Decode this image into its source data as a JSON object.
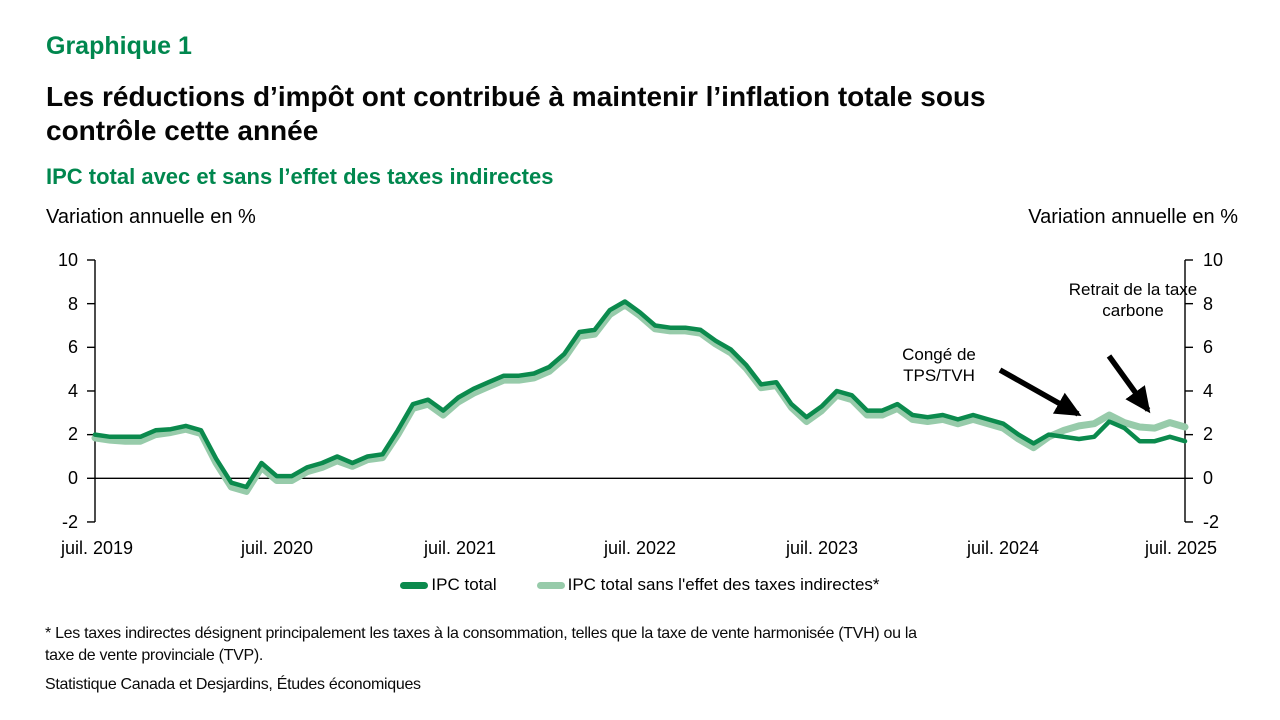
{
  "header": {
    "kicker": "Graphique 1",
    "title_line1": "Les réductions d’impôt ont contribué à maintenir l’inflation totale sous",
    "title_line2": "contrôle cette année",
    "subtitle": "IPC total avec et sans l’effet des taxes indirectes",
    "axis_label_left": "Variation annuelle en %",
    "axis_label_right": "Variation annuelle en %"
  },
  "colors": {
    "brand_green": "#00874e",
    "dark_line": "#0b8a4d",
    "light_line": "#97cbaa",
    "zero_line": "#000000"
  },
  "chart_data": {
    "type": "line",
    "frequency": "monthly",
    "x_start": "juil. 2019",
    "x_end": "juil. 2025",
    "ylim": [
      -2,
      10
    ],
    "grid": "off",
    "legend_position": "bottom",
    "y_ticks": [
      10,
      8,
      6,
      4,
      2,
      0,
      -2
    ],
    "x_tick_labels": [
      "juil. 2019",
      "juil. 2020",
      "juil. 2021",
      "juil. 2022",
      "juil. 2023",
      "juil. 2024",
      "juil. 2025"
    ],
    "series": [
      {
        "name": "IPC total",
        "color": "#0b8a4d",
        "values": [
          2.0,
          1.9,
          1.9,
          1.9,
          2.2,
          2.25,
          2.4,
          2.2,
          0.9,
          -0.2,
          -0.4,
          0.7,
          0.1,
          0.1,
          0.5,
          0.7,
          1.0,
          0.7,
          1.0,
          1.1,
          2.2,
          3.4,
          3.6,
          3.1,
          3.7,
          4.1,
          4.4,
          4.7,
          4.7,
          4.8,
          5.1,
          5.7,
          6.7,
          6.8,
          7.7,
          8.1,
          7.6,
          7.0,
          6.9,
          6.9,
          6.8,
          6.3,
          5.9,
          5.2,
          4.3,
          4.4,
          3.4,
          2.8,
          3.3,
          4.0,
          3.8,
          3.1,
          3.1,
          3.4,
          2.9,
          2.8,
          2.9,
          2.7,
          2.9,
          2.7,
          2.5,
          2.0,
          1.6,
          2.0,
          1.9,
          1.8,
          1.9,
          2.6,
          2.3,
          1.7,
          1.7,
          1.9,
          1.7
        ]
      },
      {
        "name": "IPC total sans l'effet des taxes indirectes*",
        "color": "#97cbaa",
        "values": [
          1.85,
          1.75,
          1.7,
          1.7,
          2.0,
          2.1,
          2.25,
          2.05,
          0.7,
          -0.4,
          -0.6,
          0.5,
          -0.1,
          -0.1,
          0.3,
          0.5,
          0.8,
          0.55,
          0.85,
          0.95,
          2.0,
          3.2,
          3.4,
          2.9,
          3.5,
          3.9,
          4.2,
          4.5,
          4.5,
          4.6,
          4.9,
          5.5,
          6.5,
          6.6,
          7.5,
          7.95,
          7.45,
          6.85,
          6.75,
          6.75,
          6.65,
          6.15,
          5.75,
          5.05,
          4.15,
          4.25,
          3.25,
          2.6,
          3.1,
          3.8,
          3.6,
          2.9,
          2.9,
          3.2,
          2.7,
          2.6,
          2.7,
          2.5,
          2.7,
          2.5,
          2.3,
          1.8,
          1.4,
          1.9,
          2.2,
          2.4,
          2.5,
          2.9,
          2.55,
          2.35,
          2.3,
          2.55,
          2.35
        ]
      }
    ],
    "annotations": [
      {
        "text": "Congé de TPS/TVH",
        "points_to": "déc. 2024"
      },
      {
        "text": "Retrait de la taxe carbone",
        "points_to": "avr. 2025"
      }
    ]
  },
  "legend": [
    {
      "label": "IPC total"
    },
    {
      "label": "IPC total sans l'effet des taxes indirectes*"
    }
  ],
  "footnotes": {
    "note": "* Les taxes indirectes désignent principalement les taxes à la consommation, telles que la taxe de vente harmonisée (TVH) ou la taxe de vente provinciale (TVP).",
    "source": "Statistique Canada et Desjardins, Études économiques"
  }
}
